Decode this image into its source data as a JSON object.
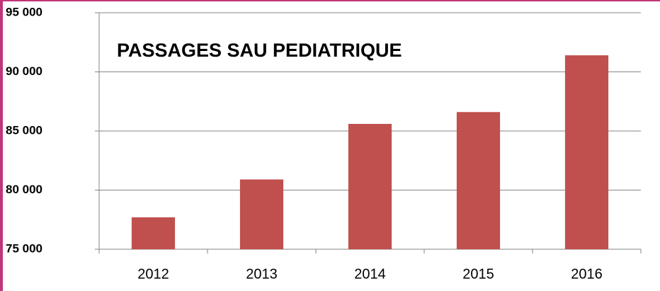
{
  "chart_data": {
    "type": "bar",
    "title": "PASSAGES SAU PEDIATRIQUE",
    "categories": [
      "2012",
      "2013",
      "2014",
      "2015",
      "2016"
    ],
    "values": [
      77700,
      80900,
      85600,
      86600,
      91400
    ],
    "color": "#c0504d",
    "ylim": [
      75000,
      95000
    ],
    "yticks": [
      {
        "value": 75000,
        "label": "75 000"
      },
      {
        "value": 80000,
        "label": "80 000"
      },
      {
        "value": 85000,
        "label": "85 000"
      },
      {
        "value": 90000,
        "label": "90 000"
      },
      {
        "value": 95000,
        "label": "95 000"
      }
    ],
    "grid": true
  }
}
